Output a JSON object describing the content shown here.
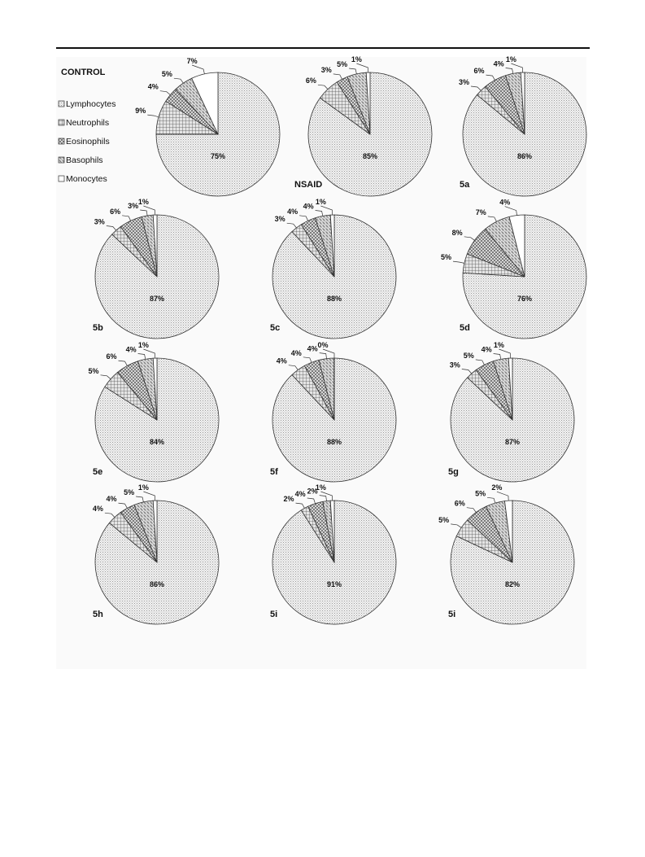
{
  "legend": {
    "title": "CONTROL",
    "items": [
      {
        "label": "Lymphocytes",
        "pattern": "dots"
      },
      {
        "label": "Neutrophils",
        "pattern": "grid"
      },
      {
        "label": "Eosinophils",
        "pattern": "cross"
      },
      {
        "label": "Basophils",
        "pattern": "hatch"
      },
      {
        "label": "Monocytes",
        "pattern": "blank"
      }
    ]
  },
  "chart_data": [
    {
      "type": "pie",
      "title": "",
      "categories": [
        "Lymphocytes",
        "Neutrophils",
        "Eosinophils",
        "Basophils",
        "Monocytes"
      ],
      "values": [
        75,
        9,
        4,
        5,
        7
      ],
      "value_labels": [
        "75%",
        "9%",
        "4%",
        "5%",
        "7%"
      ]
    },
    {
      "type": "pie",
      "title": "NSAID",
      "categories": [
        "Lymphocytes",
        "Neutrophils",
        "Eosinophils",
        "Basophils",
        "Monocytes"
      ],
      "values": [
        85,
        6,
        3,
        5,
        1
      ],
      "value_labels": [
        "85%",
        "6%",
        "3%",
        "5%",
        "1%"
      ]
    },
    {
      "type": "pie",
      "title": "5a",
      "categories": [
        "Lymphocytes",
        "Neutrophils",
        "Eosinophils",
        "Basophils",
        "Monocytes"
      ],
      "values": [
        86,
        3,
        6,
        4,
        1
      ],
      "value_labels": [
        "86%",
        "3%",
        "6%",
        "4%",
        "1%"
      ]
    },
    {
      "type": "pie",
      "title": "5b",
      "categories": [
        "Lymphocytes",
        "Neutrophils",
        "Eosinophils",
        "Basophils",
        "Monocytes"
      ],
      "values": [
        87,
        3,
        6,
        3,
        1
      ],
      "value_labels": [
        "87%",
        "3%",
        "6%",
        "3%",
        "1%"
      ]
    },
    {
      "type": "pie",
      "title": "5c",
      "categories": [
        "Lymphocytes",
        "Neutrophils",
        "Eosinophils",
        "Basophils",
        "Monocytes"
      ],
      "values": [
        88,
        3,
        4,
        4,
        1
      ],
      "value_labels": [
        "88%",
        "3%",
        "4%",
        "4%",
        "1%"
      ]
    },
    {
      "type": "pie",
      "title": "5d",
      "categories": [
        "Lymphocytes",
        "Neutrophils",
        "Eosinophils",
        "Basophils",
        "Monocytes"
      ],
      "values": [
        76,
        5,
        8,
        7,
        4
      ],
      "value_labels": [
        "76%",
        "5%",
        "8%",
        "7%",
        "4%"
      ]
    },
    {
      "type": "pie",
      "title": "5e",
      "categories": [
        "Lymphocytes",
        "Neutrophils",
        "Eosinophils",
        "Basophils",
        "Monocytes"
      ],
      "values": [
        84,
        5,
        6,
        4,
        1
      ],
      "value_labels": [
        "84%",
        "5%",
        "6%",
        "4%",
        "1%"
      ]
    },
    {
      "type": "pie",
      "title": "5f",
      "categories": [
        "Lymphocytes",
        "Neutrophils",
        "Eosinophils",
        "Basophils",
        "Monocytes"
      ],
      "values": [
        88,
        4,
        4,
        4,
        0
      ],
      "value_labels": [
        "88%",
        "4%",
        "4%",
        "4%",
        "0%"
      ]
    },
    {
      "type": "pie",
      "title": "5g",
      "categories": [
        "Lymphocytes",
        "Neutrophils",
        "Eosinophils",
        "Basophils",
        "Monocytes"
      ],
      "values": [
        87,
        3,
        5,
        4,
        1
      ],
      "value_labels": [
        "87%",
        "3%",
        "5%",
        "4%",
        "1%"
      ]
    },
    {
      "type": "pie",
      "title": "5h",
      "categories": [
        "Lymphocytes",
        "Neutrophils",
        "Eosinophils",
        "Basophils",
        "Monocytes"
      ],
      "values": [
        86,
        4,
        4,
        5,
        1
      ],
      "value_labels": [
        "86%",
        "4%",
        "4%",
        "5%",
        "1%"
      ]
    },
    {
      "type": "pie",
      "title": "5i",
      "categories": [
        "Lymphocytes",
        "Neutrophils",
        "Eosinophils",
        "Basophils",
        "Monocytes"
      ],
      "values": [
        91,
        2,
        4,
        2,
        1
      ],
      "value_labels": [
        "91%",
        "2%",
        "4%",
        "2%",
        "1%"
      ]
    },
    {
      "type": "pie",
      "title": "5i",
      "categories": [
        "Lymphocytes",
        "Neutrophils",
        "Eosinophils",
        "Basophils",
        "Monocytes"
      ],
      "values": [
        82,
        5,
        6,
        5,
        2
      ],
      "value_labels": [
        "82%",
        "5%",
        "6%",
        "5%",
        "2%"
      ]
    }
  ]
}
